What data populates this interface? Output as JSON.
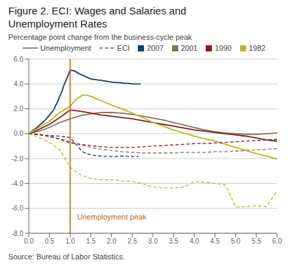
{
  "chart_data": {
    "type": "line",
    "title": [
      "Figure 2. ECI: Wages and Salaries and",
      "Unemployment Rates"
    ],
    "subtitle": "Percentage point change from the business-cycle peak",
    "source": "Source: Bureau of Labor Statistics.",
    "xlim": [
      0.0,
      6.0
    ],
    "ylim": [
      -8.0,
      6.0
    ],
    "yticks": [
      {
        "value": -8.0,
        "label": "-8.0"
      },
      {
        "value": -6.0,
        "label": "-6.0"
      },
      {
        "value": -4.0,
        "label": "-4.0"
      },
      {
        "value": -2.0,
        "label": "-2.0"
      },
      {
        "value": 0.0,
        "label": "0.0"
      },
      {
        "value": 2.0,
        "label": "2.0"
      },
      {
        "value": 4.0,
        "label": "4.0"
      },
      {
        "value": 6.0,
        "label": "6.0"
      }
    ],
    "xticks": [
      {
        "value": 0.0,
        "label": "0.0"
      },
      0.5,
      {
        "value": 1.0,
        "label": "1.0"
      },
      1.5,
      {
        "value": 2.0,
        "label": "2.0"
      },
      2.5,
      {
        "value": 3.0,
        "label": "3.0"
      },
      3.5,
      {
        "value": 4.0,
        "label": "4.0"
      },
      4.5,
      {
        "value": 5.0,
        "label": "5.0"
      },
      5.5,
      {
        "value": 6.0,
        "label": "6.0"
      }
    ],
    "grid": "y",
    "legend": "top",
    "vlines": [
      {
        "x": 1.0,
        "color": "#cc6600"
      }
    ],
    "annotations": [
      {
        "text": "Unemployment peak",
        "x": 1.07,
        "y": -6.7,
        "color": "#cc6600"
      }
    ],
    "series": [
      {
        "name": "2007",
        "measure": "Unemployment",
        "color": "#1a3a6b",
        "line_style": "solid",
        "x": [
          0.0,
          0.1,
          0.2,
          0.3,
          0.4,
          0.5,
          0.6,
          0.7,
          0.75,
          0.8,
          0.85,
          0.9,
          0.95,
          1.0,
          1.1,
          1.2,
          1.3,
          1.4,
          1.5,
          1.6,
          1.7,
          1.75,
          1.8,
          1.9,
          2.0,
          2.1,
          2.2,
          2.3,
          2.4,
          2.5,
          2.6,
          2.7
        ],
        "values": [
          0.0,
          0.25,
          0.5,
          0.8,
          1.1,
          1.5,
          1.9,
          2.6,
          3.0,
          3.4,
          3.9,
          4.3,
          4.7,
          5.1,
          5.05,
          4.85,
          4.7,
          4.55,
          4.4,
          4.35,
          4.3,
          4.3,
          4.25,
          4.2,
          4.15,
          4.1,
          4.1,
          4.05,
          4.05,
          4.0,
          4.0,
          4.0
        ]
      },
      {
        "name": "2001",
        "measure": "Unemployment",
        "color": "#8b7355",
        "line_style": "solid",
        "x": [
          0.0,
          0.25,
          0.5,
          0.75,
          1.0,
          1.25,
          1.5,
          1.75,
          2.0,
          2.25,
          2.5,
          2.75,
          3.0,
          3.25,
          3.5,
          3.75,
          4.0,
          4.25,
          4.5,
          4.75,
          5.0,
          5.25,
          5.5,
          5.75,
          6.0
        ],
        "values": [
          0.0,
          0.2,
          0.5,
          0.9,
          1.2,
          1.45,
          1.6,
          1.7,
          1.7,
          1.65,
          1.55,
          1.4,
          1.25,
          1.1,
          0.9,
          0.7,
          0.5,
          0.3,
          0.15,
          0.05,
          0.0,
          -0.05,
          -0.05,
          0.0,
          0.05
        ]
      },
      {
        "name": "1990",
        "measure": "Unemployment",
        "color": "#8b1a1a",
        "line_style": "solid",
        "x": [
          0.0,
          0.25,
          0.5,
          0.75,
          1.0,
          1.25,
          1.5,
          1.75,
          2.0,
          2.25,
          2.5,
          2.75,
          3.0,
          3.25,
          3.5,
          3.75,
          4.0,
          4.25,
          4.5,
          4.75,
          5.0,
          5.25,
          5.5,
          5.75,
          6.0
        ],
        "values": [
          0.0,
          0.35,
          0.75,
          1.3,
          1.9,
          1.8,
          1.65,
          1.5,
          1.4,
          1.3,
          1.2,
          1.05,
          0.9,
          0.75,
          0.6,
          0.45,
          0.3,
          0.2,
          0.1,
          0.0,
          -0.1,
          -0.2,
          -0.35,
          -0.5,
          -0.6
        ]
      },
      {
        "name": "1982",
        "measure": "Unemployment",
        "color": "#b8b820",
        "line_style": "solid",
        "x": [
          0.0,
          0.25,
          0.5,
          0.75,
          1.0,
          1.1,
          1.2,
          1.3,
          1.4,
          1.5,
          1.6,
          1.75,
          2.0,
          2.25,
          2.5,
          2.75,
          3.0,
          3.25,
          3.5,
          3.75,
          4.0,
          4.25,
          4.5,
          4.75,
          5.0,
          5.25,
          5.5,
          5.75,
          6.0
        ],
        "values": [
          0.0,
          0.5,
          1.0,
          1.7,
          2.2,
          2.6,
          2.9,
          3.1,
          3.1,
          3.0,
          2.85,
          2.65,
          2.3,
          2.0,
          1.65,
          1.3,
          0.9,
          0.6,
          0.3,
          0.05,
          -0.2,
          -0.4,
          -0.6,
          -0.85,
          -1.1,
          -1.35,
          -1.6,
          -1.8,
          -2.05
        ]
      },
      {
        "name": "2007",
        "measure": "ECI",
        "color": "#1a3a6b",
        "line_style": "dashed",
        "x": [
          0.0,
          0.25,
          0.5,
          0.75,
          1.0,
          1.1,
          1.2,
          1.3,
          1.4,
          1.5,
          1.6,
          1.7,
          1.75,
          1.8,
          1.9,
          2.0,
          2.1,
          2.2,
          2.3,
          2.4,
          2.5,
          2.6,
          2.65
        ],
        "values": [
          0.0,
          -0.1,
          -0.15,
          -0.2,
          -0.3,
          -0.7,
          -1.1,
          -1.45,
          -1.6,
          -1.7,
          -1.75,
          -1.8,
          -1.8,
          -1.82,
          -1.82,
          -1.83,
          -1.83,
          -1.8,
          -1.8,
          -1.82,
          -1.83,
          -1.83,
          -1.83
        ]
      },
      {
        "name": "2001",
        "measure": "ECI",
        "color": "#8b7355",
        "line_style": "dashed",
        "x": [
          0.0,
          0.25,
          0.5,
          0.75,
          1.0,
          1.25,
          1.5,
          1.75,
          2.0,
          2.25,
          2.5,
          2.75,
          3.0,
          3.25,
          3.5,
          3.75,
          4.0,
          4.25,
          4.5,
          4.75,
          5.0,
          5.25,
          5.5,
          5.75,
          6.0
        ],
        "values": [
          0.0,
          -0.1,
          -0.25,
          -0.4,
          -0.65,
          -0.9,
          -1.1,
          -1.25,
          -1.35,
          -1.45,
          -1.5,
          -1.55,
          -1.55,
          -1.55,
          -1.55,
          -1.5,
          -1.5,
          -1.5,
          -1.45,
          -1.45,
          -1.4,
          -1.35,
          -1.3,
          -1.25,
          -1.2
        ]
      },
      {
        "name": "1990",
        "measure": "ECI",
        "color": "#8b1a1a",
        "line_style": "dashed",
        "x": [
          0.0,
          0.25,
          0.5,
          0.75,
          1.0,
          1.25,
          1.5,
          1.75,
          2.0,
          2.25,
          2.5,
          2.75,
          3.0,
          3.25,
          3.5,
          3.75,
          4.0,
          4.25,
          4.5,
          4.75,
          5.0,
          5.25,
          5.5,
          5.75,
          6.0
        ],
        "values": [
          0.0,
          -0.05,
          -0.2,
          -0.45,
          -0.75,
          -0.85,
          -0.95,
          -1.05,
          -1.1,
          -1.1,
          -1.1,
          -1.05,
          -1.0,
          -0.95,
          -0.9,
          -0.85,
          -0.8,
          -0.8,
          -0.75,
          -0.7,
          -0.65,
          -0.6,
          -0.55,
          -0.5,
          -0.45
        ]
      },
      {
        "name": "1982",
        "measure": "ECI",
        "color": "#b8b820",
        "line_style": "dashed",
        "x": [
          0.0,
          0.25,
          0.5,
          0.75,
          1.0,
          1.25,
          1.5,
          1.75,
          2.0,
          2.25,
          2.5,
          2.75,
          3.0,
          3.25,
          3.5,
          3.75,
          4.0,
          4.25,
          4.5,
          4.75,
          5.0,
          5.25,
          5.5,
          5.75,
          6.0
        ],
        "values": [
          0.0,
          -0.3,
          -0.7,
          -1.3,
          -2.7,
          -3.3,
          -3.6,
          -3.7,
          -3.7,
          -3.8,
          -3.85,
          -4.0,
          -4.3,
          -4.35,
          -4.35,
          -4.3,
          -3.85,
          -3.9,
          -4.0,
          -4.1,
          -5.9,
          -5.85,
          -5.8,
          -5.85,
          -4.6
        ]
      }
    ]
  }
}
